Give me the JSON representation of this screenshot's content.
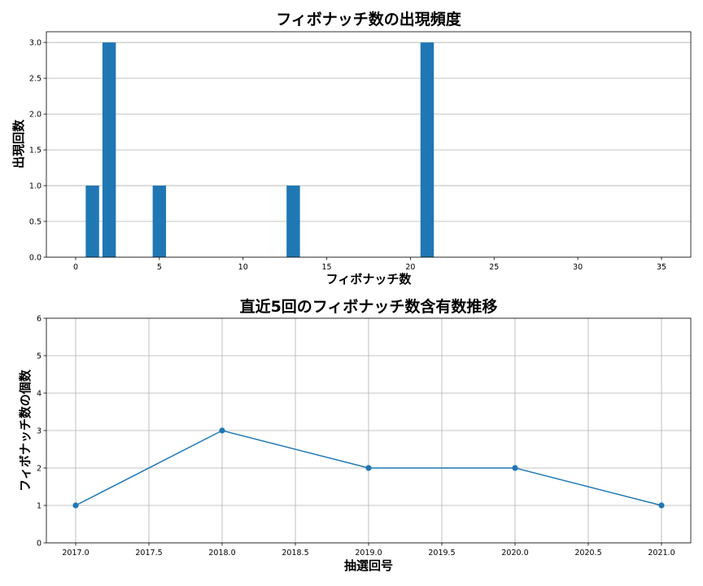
{
  "chart_data": [
    {
      "type": "bar",
      "title": "フィボナッチ数の出現頻度",
      "xlabel": "フィボナッチ数",
      "ylabel": "出現回数",
      "x": [
        1,
        2,
        5,
        13,
        21
      ],
      "values": [
        1,
        3,
        1,
        1,
        3
      ],
      "xlim": [
        -1.75,
        36.75
      ],
      "ylim": [
        0,
        3.15
      ],
      "xticks": [
        0,
        5,
        10,
        15,
        20,
        25,
        30,
        35
      ],
      "xtick_labels": [
        "0",
        "5",
        "10",
        "15",
        "20",
        "25",
        "30",
        "35"
      ],
      "yticks": [
        0,
        0.5,
        1.0,
        1.5,
        2.0,
        2.5,
        3.0
      ],
      "ytick_labels": [
        "0.0",
        "0.5",
        "1.0",
        "1.5",
        "2.0",
        "2.5",
        "3.0"
      ],
      "grid": "y",
      "color": "#1f77b4"
    },
    {
      "type": "line",
      "title": "直近5回のフィボナッチ数含有数推移",
      "xlabel": "抽選回号",
      "ylabel": "フィボナッチ数の個数",
      "x": [
        2017.0,
        2018.0,
        2019.0,
        2020.0,
        2021.0
      ],
      "y": [
        1,
        3,
        2,
        2,
        1
      ],
      "xlim": [
        2016.8,
        2021.2
      ],
      "ylim": [
        0,
        6
      ],
      "xticks": [
        2017.0,
        2017.5,
        2018.0,
        2018.5,
        2019.0,
        2019.5,
        2020.0,
        2020.5,
        2021.0
      ],
      "xtick_labels": [
        "2017.0",
        "2017.5",
        "2018.0",
        "2018.5",
        "2019.0",
        "2019.5",
        "2020.0",
        "2020.5",
        "2021.0"
      ],
      "yticks": [
        0,
        1,
        2,
        3,
        4,
        5,
        6
      ],
      "ytick_labels": [
        "0",
        "1",
        "2",
        "3",
        "4",
        "5",
        "6"
      ],
      "grid": "both",
      "marker": "circle",
      "color": "#1f77b4"
    }
  ]
}
